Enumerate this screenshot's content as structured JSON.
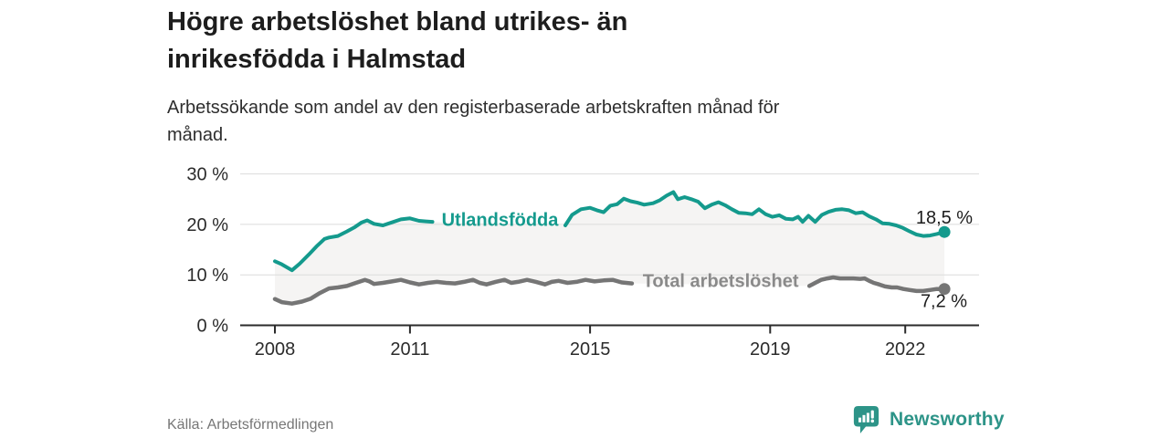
{
  "header": {
    "title_lines": [
      "Högre arbetslöshet bland utrikes- än",
      "inrikesfödda i Halmstad"
    ],
    "subtitle_lines": [
      "Arbetssökande som andel av den registerbaserade arbetskraften månad för",
      "månad."
    ]
  },
  "footer": {
    "source": "Källa: Arbetsförmedlingen",
    "brand": "Newsworthy"
  },
  "colors": {
    "accent_teal": "#149a8d",
    "line_gray": "#757575",
    "brand_teal": "#2d9488",
    "text_dark": "#1d1d1d",
    "text_muted": "#767676"
  },
  "chart_data": {
    "type": "line",
    "title": "",
    "xlabel": "",
    "ylabel": "",
    "xlim": [
      2008,
      2022.9
    ],
    "ylim": [
      0,
      31
    ],
    "grid": "horizontal",
    "grid_color": "#dcdcdc",
    "axis_color": "#2b2b2b",
    "band_color": "#f5f4f3",
    "band_fill_between_series": true,
    "yticks": [
      {
        "v": 0,
        "label": "0 %"
      },
      {
        "v": 10,
        "label": "10 %"
      },
      {
        "v": 20,
        "label": "20 %"
      },
      {
        "v": 30,
        "label": "30 %"
      }
    ],
    "xticks": [
      {
        "v": 2008,
        "label": "2008"
      },
      {
        "v": 2011,
        "label": "2011"
      },
      {
        "v": 2015,
        "label": "2015"
      },
      {
        "v": 2019,
        "label": "2019"
      },
      {
        "v": 2022,
        "label": "2022"
      }
    ],
    "series": [
      {
        "name": "Utlandsfödda",
        "color": "#149a8d",
        "label_color": "#149a8d",
        "inline_label": {
          "text": "Utlandsfödda",
          "x": 2013.0,
          "y": 21.0
        },
        "end_label": "18,5 %",
        "last_value": 18.5,
        "points": [
          [
            2008.0,
            12.7
          ],
          [
            2008.15,
            12.1
          ],
          [
            2008.38,
            10.9
          ],
          [
            2008.55,
            12.2
          ],
          [
            2008.75,
            14.0
          ],
          [
            2008.92,
            15.6
          ],
          [
            2009.1,
            17.1
          ],
          [
            2009.2,
            17.4
          ],
          [
            2009.4,
            17.7
          ],
          [
            2009.6,
            18.6
          ],
          [
            2009.78,
            19.5
          ],
          [
            2009.93,
            20.4
          ],
          [
            2010.05,
            20.8
          ],
          [
            2010.2,
            20.1
          ],
          [
            2010.4,
            19.8
          ],
          [
            2010.6,
            20.4
          ],
          [
            2010.8,
            21.0
          ],
          [
            2011.0,
            21.2
          ],
          [
            2011.2,
            20.7
          ],
          [
            2011.35,
            20.6
          ],
          [
            2011.5,
            20.5
          ],
          [
            2014.45,
            19.8
          ],
          [
            2014.6,
            21.9
          ],
          [
            2014.8,
            23.0
          ],
          [
            2015.0,
            23.3
          ],
          [
            2015.15,
            22.8
          ],
          [
            2015.3,
            22.4
          ],
          [
            2015.45,
            23.7
          ],
          [
            2015.6,
            24.0
          ],
          [
            2015.75,
            25.1
          ],
          [
            2015.9,
            24.6
          ],
          [
            2016.05,
            24.3
          ],
          [
            2016.2,
            23.9
          ],
          [
            2016.4,
            24.2
          ],
          [
            2016.55,
            24.8
          ],
          [
            2016.7,
            25.7
          ],
          [
            2016.85,
            26.4
          ],
          [
            2016.95,
            25.0
          ],
          [
            2017.1,
            25.4
          ],
          [
            2017.25,
            25.0
          ],
          [
            2017.4,
            24.5
          ],
          [
            2017.55,
            23.2
          ],
          [
            2017.7,
            23.9
          ],
          [
            2017.85,
            24.4
          ],
          [
            2018.0,
            23.8
          ],
          [
            2018.15,
            23.0
          ],
          [
            2018.3,
            22.3
          ],
          [
            2018.45,
            22.2
          ],
          [
            2018.6,
            22.0
          ],
          [
            2018.75,
            23.0
          ],
          [
            2018.9,
            22.0
          ],
          [
            2019.05,
            21.5
          ],
          [
            2019.2,
            21.8
          ],
          [
            2019.35,
            21.1
          ],
          [
            2019.5,
            21.0
          ],
          [
            2019.62,
            21.5
          ],
          [
            2019.72,
            20.5
          ],
          [
            2019.85,
            21.7
          ],
          [
            2020.0,
            20.5
          ],
          [
            2020.15,
            21.9
          ],
          [
            2020.3,
            22.5
          ],
          [
            2020.45,
            22.9
          ],
          [
            2020.6,
            23.0
          ],
          [
            2020.75,
            22.8
          ],
          [
            2020.9,
            22.2
          ],
          [
            2021.05,
            22.4
          ],
          [
            2021.2,
            21.6
          ],
          [
            2021.35,
            21.0
          ],
          [
            2021.5,
            20.2
          ],
          [
            2021.65,
            20.1
          ],
          [
            2021.8,
            19.8
          ],
          [
            2021.95,
            19.3
          ],
          [
            2022.1,
            18.6
          ],
          [
            2022.25,
            18.0
          ],
          [
            2022.4,
            17.7
          ],
          [
            2022.55,
            17.8
          ],
          [
            2022.7,
            18.1
          ],
          [
            2022.87,
            18.5
          ]
        ]
      },
      {
        "name": "Total arbetslöshet",
        "color": "#757575",
        "label_color": "#8a8a8a",
        "inline_label": {
          "text": "Total arbetslöshet",
          "x": 2017.9,
          "y": 8.9
        },
        "end_label": "7,2 %",
        "last_value": 7.2,
        "points": [
          [
            2008.0,
            5.2
          ],
          [
            2008.15,
            4.6
          ],
          [
            2008.38,
            4.3
          ],
          [
            2008.6,
            4.7
          ],
          [
            2008.8,
            5.3
          ],
          [
            2009.0,
            6.4
          ],
          [
            2009.2,
            7.3
          ],
          [
            2009.4,
            7.5
          ],
          [
            2009.6,
            7.8
          ],
          [
            2009.8,
            8.4
          ],
          [
            2010.0,
            9.0
          ],
          [
            2010.1,
            8.7
          ],
          [
            2010.2,
            8.2
          ],
          [
            2010.4,
            8.4
          ],
          [
            2010.6,
            8.7
          ],
          [
            2010.8,
            9.0
          ],
          [
            2011.0,
            8.5
          ],
          [
            2011.2,
            8.1
          ],
          [
            2011.4,
            8.4
          ],
          [
            2011.6,
            8.6
          ],
          [
            2011.8,
            8.4
          ],
          [
            2012.0,
            8.3
          ],
          [
            2012.2,
            8.6
          ],
          [
            2012.4,
            9.0
          ],
          [
            2012.55,
            8.4
          ],
          [
            2012.7,
            8.1
          ],
          [
            2012.9,
            8.6
          ],
          [
            2013.1,
            9.0
          ],
          [
            2013.25,
            8.4
          ],
          [
            2013.4,
            8.6
          ],
          [
            2013.6,
            9.0
          ],
          [
            2013.8,
            8.6
          ],
          [
            2014.0,
            8.1
          ],
          [
            2014.15,
            8.6
          ],
          [
            2014.3,
            8.8
          ],
          [
            2014.5,
            8.4
          ],
          [
            2014.7,
            8.6
          ],
          [
            2014.9,
            9.0
          ],
          [
            2015.1,
            8.7
          ],
          [
            2015.3,
            8.9
          ],
          [
            2015.5,
            9.0
          ],
          [
            2015.7,
            8.5
          ],
          [
            2015.93,
            8.3
          ],
          [
            2019.87,
            7.8
          ],
          [
            2020.0,
            8.4
          ],
          [
            2020.13,
            9.0
          ],
          [
            2020.27,
            9.3
          ],
          [
            2020.4,
            9.5
          ],
          [
            2020.55,
            9.3
          ],
          [
            2020.7,
            9.3
          ],
          [
            2020.85,
            9.3
          ],
          [
            2021.0,
            9.2
          ],
          [
            2021.1,
            9.3
          ],
          [
            2021.2,
            8.8
          ],
          [
            2021.3,
            8.4
          ],
          [
            2021.42,
            8.1
          ],
          [
            2021.55,
            7.7
          ],
          [
            2021.7,
            7.5
          ],
          [
            2021.82,
            7.5
          ],
          [
            2021.96,
            7.2
          ],
          [
            2022.1,
            7.0
          ],
          [
            2022.25,
            6.8
          ],
          [
            2022.4,
            6.8
          ],
          [
            2022.55,
            7.0
          ],
          [
            2022.7,
            7.2
          ],
          [
            2022.87,
            7.2
          ]
        ]
      }
    ]
  }
}
